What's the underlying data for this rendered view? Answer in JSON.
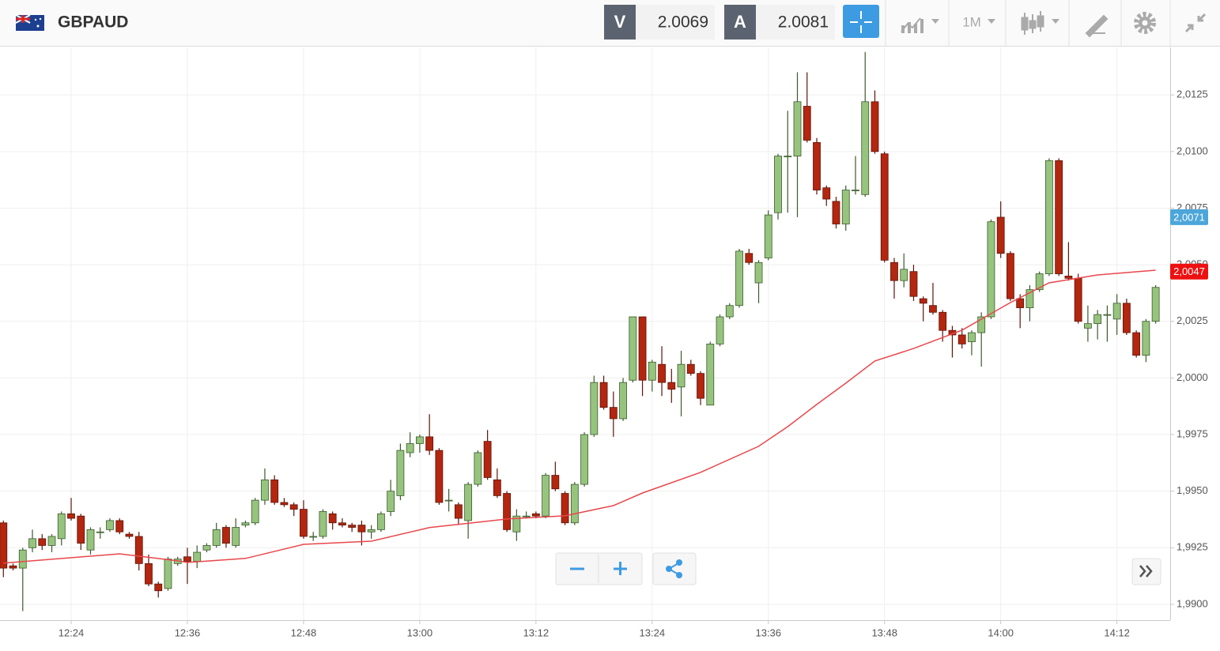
{
  "header": {
    "symbol": "GBPAUD",
    "bid_label": "V",
    "bid": 2.0069,
    "ask_label": "A",
    "ask": 2.0081,
    "timeframe": "1M"
  },
  "chart_data": {
    "type": "candlestick",
    "x": [
      737,
      738,
      739,
      740,
      741,
      742,
      743,
      744,
      745,
      746,
      747,
      748,
      749,
      750,
      751,
      752,
      753,
      754,
      755,
      756,
      757,
      758,
      759,
      760,
      761,
      762,
      763,
      764,
      765,
      766,
      767,
      768,
      769,
      770,
      771,
      772,
      773,
      774,
      775,
      776,
      777,
      778,
      779,
      780,
      781,
      782,
      783,
      784,
      785,
      786,
      787,
      788,
      789,
      790,
      791,
      792,
      793,
      794,
      795,
      796,
      797,
      798,
      799,
      800,
      801,
      802,
      803,
      804,
      805,
      806,
      807,
      808,
      809,
      810,
      811,
      812,
      813,
      814,
      815,
      816,
      817,
      818,
      819,
      820,
      821,
      822,
      823,
      824,
      825,
      826,
      827,
      828,
      829,
      830,
      831,
      832,
      833,
      834,
      835,
      836,
      837,
      838,
      839,
      840,
      841,
      842,
      843,
      844,
      845,
      846,
      847,
      848,
      849,
      850,
      851,
      852,
      853,
      854,
      855,
      856
    ],
    "open": [
      1.9936,
      1.9917,
      1.9916,
      1.9925,
      1.9929,
      1.9926,
      1.9929,
      1.994,
      1.9939,
      1.9924,
      1.9932,
      1.9933,
      1.9937,
      1.9931,
      1.993,
      1.9918,
      1.9909,
      1.9907,
      1.9918,
      1.9921,
      1.9919,
      1.9924,
      1.9926,
      1.9934,
      1.9926,
      1.9935,
      1.9936,
      1.9946,
      1.9955,
      1.9945,
      1.9944,
      1.9942,
      1.993,
      1.993,
      1.994,
      1.9936,
      1.9935,
      1.9935,
      1.9932,
      1.9933,
      1.9941,
      1.9948,
      1.9967,
      1.9971,
      1.9974,
      1.9968,
      1.9946,
      1.9944,
      1.9937,
      1.9953,
      1.9972,
      1.9955,
      1.9949,
      1.9932,
      1.9939,
      1.994,
      1.9939,
      1.9957,
      1.9949,
      1.9936,
      1.9953,
      1.9975,
      1.9998,
      1.9987,
      1.9982,
      1.9999,
      2.0027,
      1.9999,
      2.0006,
      1.9998,
      1.9996,
      2.0006,
      2.0002,
      1.9988,
      2.0015,
      2.0027,
      2.0032,
      2.0055,
      2.0042,
      2.0053,
      2.0073,
      2.0098,
      2.0098,
      2.012,
      2.0104,
      2.0084,
      2.0078,
      2.0068,
      2.0083,
      2.0081,
      2.0122,
      2.0099,
      2.0051,
      2.0043,
      2.0047,
      2.0035,
      2.0032,
      2.0029,
      2.0021,
      2.0019,
      2.0016,
      2.002,
      2.0027,
      2.0071,
      2.0055,
      2.0035,
      2.0031,
      2.0039,
      2.0046,
      2.0096,
      2.0045,
      2.0044,
      2.0022,
      2.0024,
      2.0028,
      2.0026,
      2.0033,
      2.002,
      2.001,
      2.0025
    ],
    "high": [
      1.9937,
      1.9918,
      1.9925,
      1.9933,
      1.9931,
      1.9931,
      1.9941,
      1.9947,
      1.994,
      1.9934,
      1.9934,
      1.9938,
      1.9938,
      1.9932,
      1.9932,
      1.9922,
      1.991,
      1.9921,
      1.9921,
      1.9925,
      1.9926,
      1.9927,
      1.9936,
      1.9935,
      1.9938,
      1.9937,
      1.9947,
      1.996,
      1.9957,
      1.9947,
      1.9945,
      1.9946,
      1.9932,
      1.9942,
      1.9941,
      1.9938,
      1.9936,
      1.9937,
      1.9935,
      1.9941,
      1.9955,
      1.9971,
      1.9976,
      1.9975,
      1.9984,
      1.9969,
      1.9951,
      1.9945,
      1.9954,
      1.9968,
      1.9977,
      1.996,
      1.995,
      1.9942,
      1.9941,
      1.9941,
      1.9958,
      1.9963,
      1.995,
      1.9954,
      1.9976,
      2.0001,
      2.0001,
      1.9994,
      2.0,
      2.0027,
      2.0027,
      2.0008,
      2.0014,
      2.0004,
      2.0012,
      2.0008,
      2.0003,
      2.0016,
      2.0028,
      2.0033,
      2.0057,
      2.0057,
      2.0052,
      2.0074,
      2.0099,
      2.0118,
      2.0135,
      2.0135,
      2.0106,
      2.0085,
      2.008,
      2.0085,
      2.0098,
      2.0144,
      2.0127,
      2.01,
      2.0053,
      2.0055,
      2.005,
      2.0036,
      2.0042,
      2.003,
      2.0023,
      2.0022,
      2.0021,
      2.0029,
      2.007,
      2.0078,
      2.0056,
      2.0037,
      2.0041,
      2.0047,
      2.0097,
      2.0097,
      2.006,
      2.0046,
      2.0032,
      2.003,
      2.0032,
      2.0037,
      2.0035,
      2.0021,
      2.0026,
      2.0041
    ],
    "low": [
      1.9912,
      1.9915,
      1.9897,
      1.9923,
      1.9924,
      1.9923,
      1.9926,
      1.9937,
      1.9924,
      1.9922,
      1.9929,
      1.9932,
      1.9931,
      1.9929,
      1.9915,
      1.9908,
      1.9903,
      1.9906,
      1.9917,
      1.9909,
      1.9916,
      1.9923,
      1.9925,
      1.9925,
      1.9925,
      1.9934,
      1.9935,
      1.9944,
      1.9944,
      1.9943,
      1.9939,
      1.9929,
      1.9928,
      1.9929,
      1.9933,
      1.9934,
      1.9932,
      1.9926,
      1.9929,
      1.9932,
      1.9939,
      1.9946,
      1.9965,
      1.9967,
      1.9966,
      1.9944,
      1.9941,
      1.9935,
      1.9929,
      1.9952,
      1.9955,
      1.9947,
      1.9932,
      1.9928,
      1.9938,
      1.9938,
      1.9938,
      1.995,
      1.9935,
      1.9935,
      1.9952,
      1.9974,
      1.9986,
      1.9974,
      1.9981,
      1.9998,
      1.9992,
      1.9994,
      1.9992,
      1.9989,
      1.9983,
      2.0001,
      1.9988,
      1.9988,
      2.0014,
      2.0026,
      2.0031,
      2.005,
      2.0033,
      2.0052,
      2.007,
      2.0073,
      2.0071,
      2.0104,
      2.0081,
      2.0076,
      2.0066,
      2.0065,
      2.0081,
      2.008,
      2.0099,
      2.0051,
      2.0035,
      2.004,
      2.0034,
      2.0025,
      2.0028,
      2.0016,
      2.0009,
      2.0013,
      2.001,
      2.0005,
      2.0026,
      2.0053,
      2.0034,
      2.0022,
      2.0025,
      2.0038,
      2.0045,
      2.0045,
      2.0043,
      2.0024,
      2.0016,
      2.0017,
      2.0016,
      2.0019,
      2.0019,
      2.0009,
      2.0007,
      2.0024
    ],
    "close": [
      1.9916,
      1.9916,
      1.9924,
      1.9929,
      1.9926,
      1.993,
      1.994,
      1.9938,
      1.9927,
      1.9933,
      1.9932,
      1.9937,
      1.9932,
      1.993,
      1.9918,
      1.9909,
      1.9906,
      1.992,
      1.992,
      1.9919,
      1.9923,
      1.9926,
      1.9933,
      1.9927,
      1.9934,
      1.9936,
      1.9946,
      1.9955,
      1.9945,
      1.9944,
      1.9942,
      1.993,
      1.993,
      1.9941,
      1.9936,
      1.9935,
      1.9934,
      1.9932,
      1.9933,
      1.994,
      1.995,
      1.9968,
      1.9971,
      1.9974,
      1.9968,
      1.9945,
      1.9946,
      1.9938,
      1.9953,
      1.9967,
      1.9956,
      1.9948,
      1.9933,
      1.9939,
      1.9939,
      1.9939,
      1.9957,
      1.9951,
      1.9936,
      1.9953,
      1.9975,
      1.9998,
      1.9987,
      1.9982,
      1.9998,
      2.0027,
      1.9999,
      2.0007,
      1.9998,
      1.9995,
      2.0006,
      2.0002,
      1.9991,
      2.0015,
      2.0027,
      2.0032,
      2.0056,
      2.0051,
      2.0051,
      2.0072,
      2.0098,
      2.0098,
      2.0122,
      2.0105,
      2.0083,
      2.0079,
      2.0068,
      2.0083,
      2.0083,
      2.0122,
      2.01,
      2.0052,
      2.0043,
      2.0048,
      2.0036,
      2.0033,
      2.0029,
      2.0021,
      2.0019,
      2.0015,
      2.002,
      2.0027,
      2.0069,
      2.0055,
      2.0035,
      2.0031,
      2.0039,
      2.0046,
      2.0096,
      2.0046,
      2.0044,
      2.0025,
      2.0024,
      2.0028,
      2.0028,
      2.0033,
      2.002,
      2.001,
      2.0025,
      2.004
    ],
    "up_color": "#96c47e",
    "up_border": "#3c5a2c",
    "down_color": "#b3260f",
    "down_border": "#5e1408",
    "overlay": {
      "type": "line",
      "color": "#e8474b",
      "x": [
        737,
        749,
        755,
        756,
        762,
        768,
        775,
        781,
        789,
        795,
        800,
        803,
        809,
        815,
        818,
        821,
        824,
        827,
        831,
        836,
        841,
        845,
        850,
        856
      ],
      "values": [
        1.99182,
        1.99223,
        1.99192,
        1.99185,
        1.99203,
        1.99265,
        1.99279,
        1.99339,
        1.99377,
        1.99391,
        1.99436,
        1.99492,
        1.99583,
        1.99698,
        1.99785,
        1.99883,
        1.99977,
        2.00075,
        2.0013,
        2.00211,
        2.00333,
        2.0042,
        2.00455,
        2.00476
      ]
    },
    "markers": [
      {
        "value": 2.0071,
        "label": "2,0071",
        "color": "#4ca6da"
      },
      {
        "value": 2.0047,
        "label": "2,0047",
        "color": "#ee1010"
      }
    ],
    "xlim": [
      736.65,
      857.5
    ],
    "xticks": [
      {
        "value": 744,
        "label": "12:24"
      },
      {
        "value": 756,
        "label": "12:36"
      },
      {
        "value": 768,
        "label": "12:48"
      },
      {
        "value": 780,
        "label": "13:00"
      },
      {
        "value": 792,
        "label": "13:12"
      },
      {
        "value": 804,
        "label": "13:24"
      },
      {
        "value": 816,
        "label": "13:36"
      },
      {
        "value": 828,
        "label": "13:48"
      },
      {
        "value": 840,
        "label": "14:00"
      },
      {
        "value": 852,
        "label": "14:12"
      }
    ],
    "ylim": [
      1.9893,
      2.0146
    ],
    "yticks": [
      {
        "value": 1.99,
        "label": "1,9900"
      },
      {
        "value": 1.9925,
        "label": "1,9925"
      },
      {
        "value": 1.995,
        "label": "1,9950"
      },
      {
        "value": 1.9975,
        "label": "1,9975"
      },
      {
        "value": 2,
        "label": "2,0000"
      },
      {
        "value": 2.0025,
        "label": "2,0025"
      },
      {
        "value": 2.005,
        "label": "2,0050"
      },
      {
        "value": 2.0075,
        "label": "2,0075"
      },
      {
        "value": 2.01,
        "label": "2,0100"
      },
      {
        "value": 2.0125,
        "label": "2,0125"
      }
    ],
    "grid": true
  }
}
